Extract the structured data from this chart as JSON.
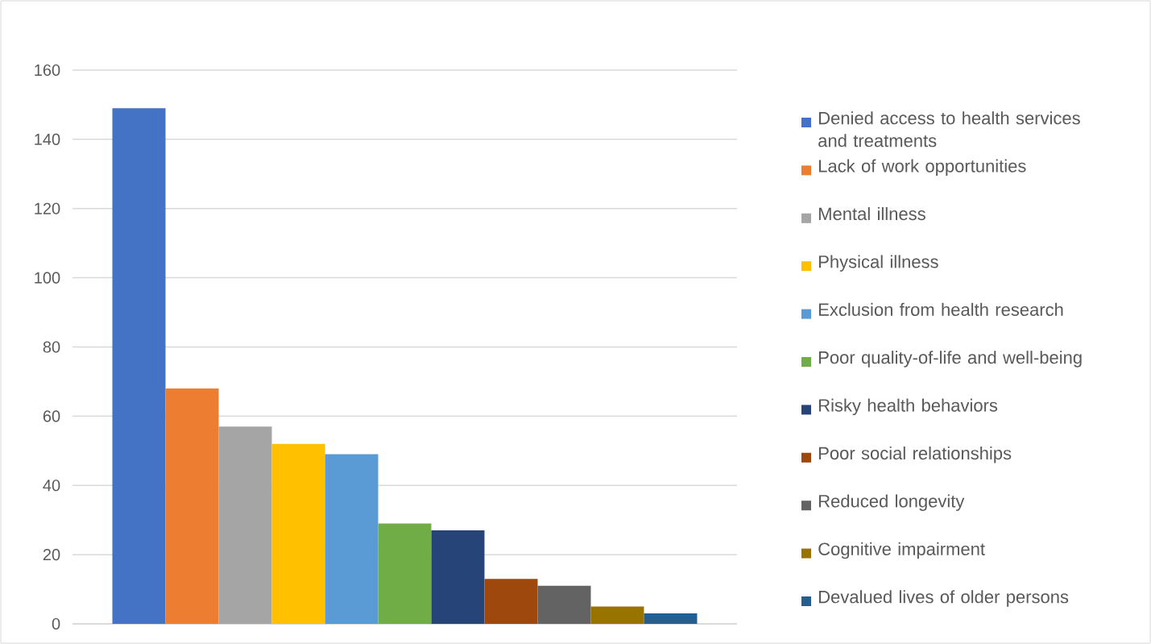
{
  "chart_data": {
    "type": "bar",
    "categories": [
      null
    ],
    "series": [
      {
        "name": "Denied access to health services and treatments",
        "color": "#4472c4",
        "values": [
          149
        ]
      },
      {
        "name": "Lack of work opportunities",
        "color": "#ed7d31",
        "values": [
          68
        ]
      },
      {
        "name": "Mental illness",
        "color": "#a5a5a5",
        "values": [
          57
        ]
      },
      {
        "name": "Physical illness",
        "color": "#ffc000",
        "values": [
          52
        ]
      },
      {
        "name": "Exclusion from health research",
        "color": "#5b9bd5",
        "values": [
          49
        ]
      },
      {
        "name": "Poor quality-of-life and well-being",
        "color": "#70ad47",
        "values": [
          29
        ]
      },
      {
        "name": "Risky health behaviors",
        "color": "#264478",
        "values": [
          27
        ]
      },
      {
        "name": "Poor social relationships",
        "color": "#9e480e",
        "values": [
          13
        ]
      },
      {
        "name": "Reduced longevity",
        "color": "#636363",
        "values": [
          11
        ]
      },
      {
        "name": "Cognitive impairment",
        "color": "#997300",
        "values": [
          5
        ]
      },
      {
        "name": "Devalued lives of older persons",
        "color": "#255e91",
        "values": [
          3
        ]
      }
    ],
    "ylim": [
      0,
      160
    ],
    "yticks": [
      0,
      20,
      40,
      60,
      80,
      100,
      120,
      140,
      160
    ],
    "grid": "y",
    "legend": "right"
  }
}
